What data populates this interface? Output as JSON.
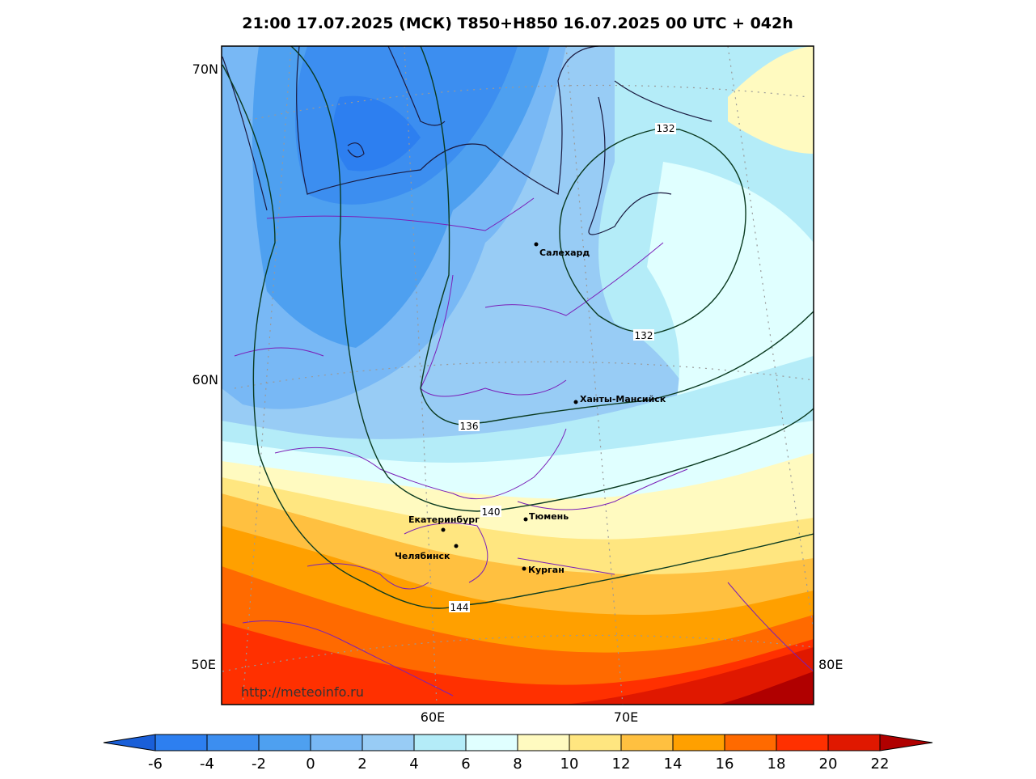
{
  "header": {
    "title": "21:00 17.07.2025 (МСК) T850+H850 16.07.2025 00 UTC + 042h"
  },
  "map": {
    "lat_labels": [
      "70N",
      "60N"
    ],
    "lon_labels": [
      "50E",
      "60E",
      "70E",
      "80E"
    ],
    "cities": [
      "Салехард",
      "Ханты-Мансийск",
      "Екатеринбург",
      "Тюмень",
      "Челябинск",
      "Курган"
    ],
    "contour_labels": [
      132,
      132,
      136,
      140,
      144
    ],
    "url": "http://meteoinfo.ru"
  },
  "colorbar": {
    "ticks": [
      -6,
      -4,
      -2,
      0,
      2,
      4,
      6,
      8,
      10,
      12,
      14,
      16,
      18,
      20,
      22
    ],
    "colors": [
      "#1a5fd8",
      "#2d7ff0",
      "#3c8ef0",
      "#4ea0f0",
      "#78b8f5",
      "#98ccf5",
      "#b4ecf8",
      "#e0ffff",
      "#fffac0",
      "#ffe680",
      "#ffc040",
      "#ffa000",
      "#ff6a00",
      "#ff3000",
      "#e01800",
      "#b00000"
    ]
  }
}
